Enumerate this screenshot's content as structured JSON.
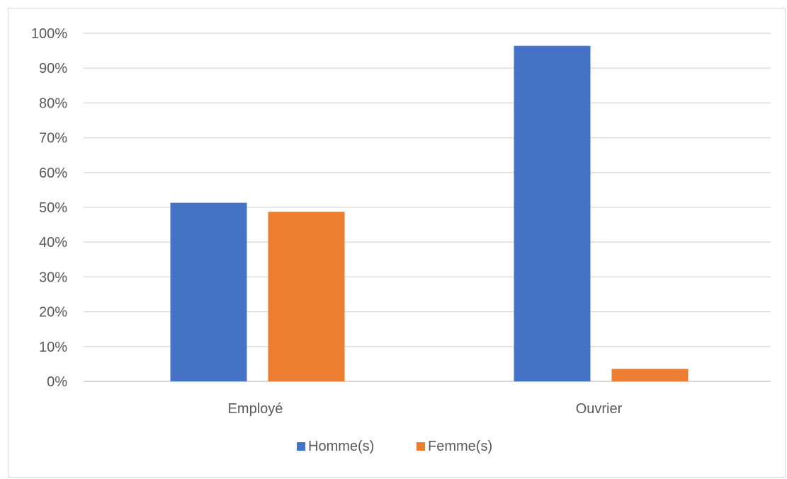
{
  "chart_data": {
    "type": "bar",
    "title": "",
    "xlabel": "",
    "ylabel": "",
    "categories": [
      "Employé",
      "Ouvrier"
    ],
    "series": [
      {
        "name": "Homme(s)",
        "color": "#4472C4",
        "values": [
          51.3,
          96.4
        ]
      },
      {
        "name": "Femme(s)",
        "color": "#ED7D31",
        "values": [
          48.7,
          3.6
        ]
      }
    ],
    "ylim": [
      0,
      100
    ],
    "yticks": [
      0,
      10,
      20,
      30,
      40,
      50,
      60,
      70,
      80,
      90,
      100
    ],
    "ytick_labels": [
      "0%",
      "10%",
      "20%",
      "30%",
      "40%",
      "50%",
      "60%",
      "70%",
      "80%",
      "90%",
      "100%"
    ],
    "grid": true,
    "legend_position": "bottom"
  }
}
